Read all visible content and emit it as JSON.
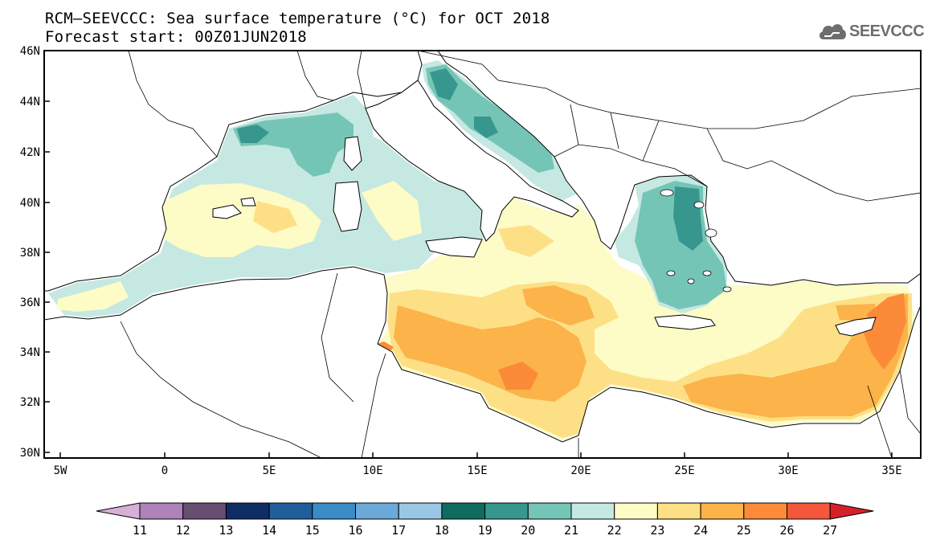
{
  "title_line1": "RCM–SEEVCCC: Sea surface temperature (°C) for OCT 2018",
  "title_line2": "Forecast start: 00Z01JUN2018",
  "logo": {
    "text": "SEEVCCC",
    "icon": "cloud-icon"
  },
  "map": {
    "lat_labels": [
      "46N",
      "44N",
      "42N",
      "40N",
      "38N",
      "36N",
      "34N",
      "32N",
      "30N"
    ],
    "lon_labels": [
      "5W",
      "0",
      "5E",
      "10E",
      "15E",
      "20E",
      "25E",
      "30E",
      "35E"
    ]
  },
  "colorbar": {
    "labels": [
      "11",
      "12",
      "13",
      "14",
      "15",
      "16",
      "17",
      "18",
      "19",
      "20",
      "21",
      "22",
      "23",
      "24",
      "25",
      "26",
      "27"
    ],
    "colors": [
      "#d7b0d8",
      "#ad83ba",
      "#684e70",
      "#0e2d64",
      "#1e5f9b",
      "#3a8bc6",
      "#6ba9d9",
      "#9ac7e3",
      "#0f6b5e",
      "#37978f",
      "#75c5b7",
      "#c5e8e2",
      "#fdfbc6",
      "#fde085",
      "#fbb34a",
      "#fb8b39",
      "#f5573a",
      "#d7212a"
    ]
  }
}
